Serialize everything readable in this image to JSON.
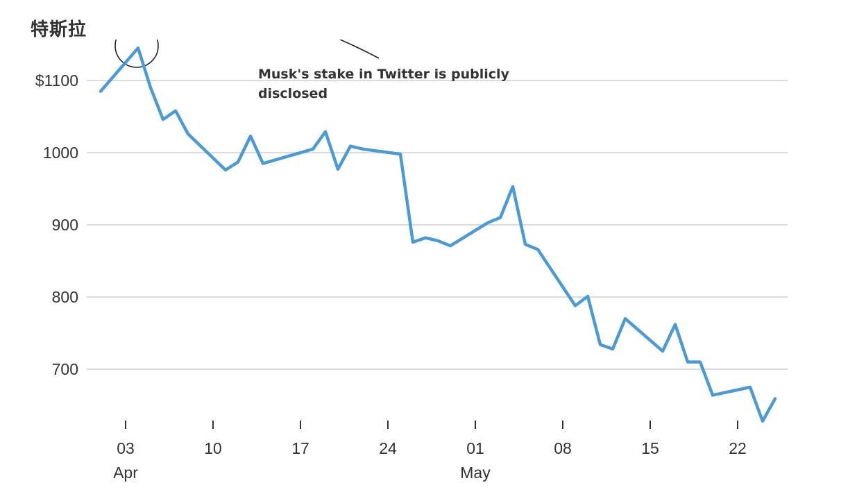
{
  "title": "特斯拉",
  "chart_data": {
    "type": "line",
    "title": "特斯拉",
    "xlabel": "",
    "ylabel": "",
    "ylim": [
      615,
      1170
    ],
    "xlim": [
      "2022-04-01",
      "2022-05-26"
    ],
    "y_ticks": [
      {
        "value": 1100,
        "label": "$1100"
      },
      {
        "value": 1000,
        "label": "1000"
      },
      {
        "value": 900,
        "label": "900"
      },
      {
        "value": 800,
        "label": "800"
      },
      {
        "value": 700,
        "label": "700"
      }
    ],
    "x_ticks": [
      {
        "date": "2022-04-03",
        "label": "03",
        "sublabel": "Apr"
      },
      {
        "date": "2022-04-10",
        "label": "10",
        "sublabel": ""
      },
      {
        "date": "2022-04-17",
        "label": "17",
        "sublabel": ""
      },
      {
        "date": "2022-04-24",
        "label": "24",
        "sublabel": ""
      },
      {
        "date": "2022-05-01",
        "label": "01",
        "sublabel": "May"
      },
      {
        "date": "2022-05-08",
        "label": "08",
        "sublabel": ""
      },
      {
        "date": "2022-05-15",
        "label": "15",
        "sublabel": ""
      },
      {
        "date": "2022-05-22",
        "label": "22",
        "sublabel": ""
      }
    ],
    "grid": true,
    "line_color": "#4a9ad6",
    "series": [
      {
        "x": [
          "2022-04-01",
          "2022-04-04",
          "2022-04-05",
          "2022-04-06",
          "2022-04-07",
          "2022-04-08",
          "2022-04-11",
          "2022-04-12",
          "2022-04-13",
          "2022-04-14",
          "2022-04-18",
          "2022-04-19",
          "2022-04-20",
          "2022-04-21",
          "2022-04-22",
          "2022-04-25",
          "2022-04-26",
          "2022-04-27",
          "2022-04-28",
          "2022-04-29",
          "2022-05-02",
          "2022-05-03",
          "2022-05-04",
          "2022-05-05",
          "2022-05-06",
          "2022-05-09",
          "2022-05-10",
          "2022-05-11",
          "2022-05-12",
          "2022-05-13",
          "2022-05-16",
          "2022-05-17",
          "2022-05-18",
          "2022-05-19",
          "2022-05-20",
          "2022-05-23",
          "2022-05-24",
          "2022-05-25"
        ],
        "values": [
          1085,
          1145,
          1090,
          1046,
          1058,
          1026,
          976,
          987,
          1023,
          985,
          1005,
          1029,
          977,
          1009,
          1005,
          998,
          876,
          882,
          878,
          871,
          903,
          910,
          953,
          873,
          866,
          788,
          801,
          734,
          728,
          770,
          725,
          762,
          710,
          710,
          664,
          675,
          628,
          659
        ]
      }
    ],
    "annotations": [
      {
        "text_lines": [
          "Musk's stake in Twitter is publicly",
          "disclosed"
        ],
        "target_date": "2022-04-04",
        "target_value": 1145
      }
    ]
  }
}
